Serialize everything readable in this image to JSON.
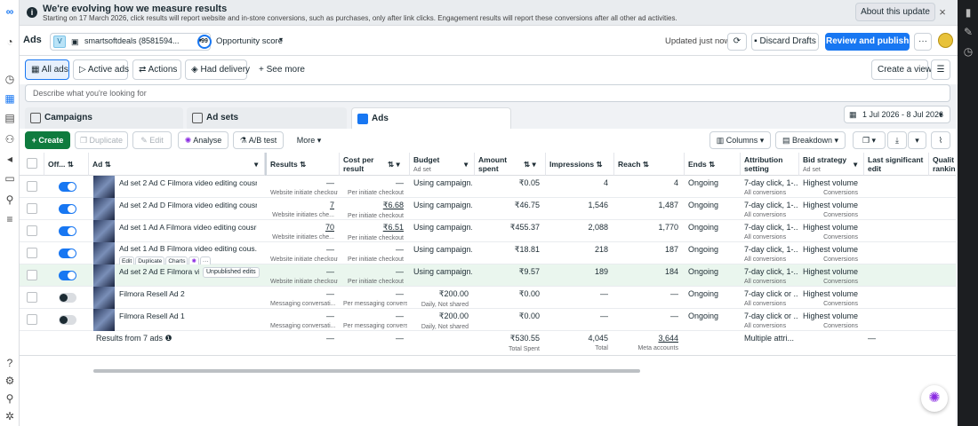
{
  "banner": {
    "title": "We're evolving how we measure results",
    "text": "Starting on 17 March 2026, click results will report website and in-store conversions, such as purchases, only after link clicks. Engagement results will report these conversions after all other ad activities.",
    "about_label": "About this update",
    "close_icon": "×"
  },
  "header": {
    "title": "Ads",
    "account_badge": "V",
    "account_name": "smartsoftdeals (8581594...",
    "opportunity_score_value": "99",
    "opportunity_score_label": "Opportunity score",
    "updated": "Updated just now",
    "discard_label": "Discard Drafts",
    "publish_label": "Review and publish (1)",
    "more_label": "···"
  },
  "filter_tabs": [
    {
      "label": "All ads"
    },
    {
      "label": "Active ads"
    },
    {
      "label": "Actions"
    },
    {
      "label": "Had delivery"
    },
    {
      "label": "See more"
    }
  ],
  "create_view_label": "Create a view",
  "search": {
    "placeholder": "Describe what you're looking for"
  },
  "level_tabs": [
    {
      "label": "Campaigns"
    },
    {
      "label": "Ad sets"
    },
    {
      "label": "Ads"
    }
  ],
  "date_range": "1 Jul 2026 - 8 Jul 2026",
  "toolbar": {
    "create": "Create",
    "duplicate": "Duplicate",
    "edit": "Edit",
    "analyse": "Analyse",
    "ab_test": "A/B test",
    "more": "More",
    "columns": "Columns",
    "breakdown": "Breakdown"
  },
  "columns": {
    "off_on": "Off...",
    "ad": "Ad",
    "results": "Results",
    "cost_per_result_1": "Cost per",
    "cost_per_result_2": "result",
    "budget": "Budget",
    "budget_sub": "Ad set",
    "amount_spent_1": "Amount",
    "amount_spent_2": "spent",
    "impressions": "Impressions",
    "reach": "Reach",
    "ends": "Ends",
    "attribution_1": "Attribution",
    "attribution_2": "setting",
    "bid_strategy": "Bid strategy",
    "bid_strategy_sub": "Ad set",
    "last_edit_1": "Last significant",
    "last_edit_2": "edit",
    "quality_1": "Qualit",
    "quality_2": "rankin"
  },
  "rows": [
    {
      "name": "Ad set 2 Ad C Filmora video editing cousre ...",
      "on": true,
      "results": "—",
      "results_sub": "Website initiate checkout",
      "cpr": "—",
      "cpr_sub": "Per initiate checkout",
      "budget": "Using campaign...",
      "spent": "₹0.05",
      "impressions": "4",
      "reach": "4",
      "ends": "Ongoing",
      "attribution": "7-day click, 1-...",
      "attribution_sub": "All conversions",
      "bid": "Highest volume",
      "bid_sub": "Conversions"
    },
    {
      "name": "Ad set 2 Ad D Filmora video editing cousre ...",
      "on": true,
      "results": "7",
      "results_sub": "Website initiates che...",
      "cpr": "₹6.68",
      "cpr_sub": "Per initiate checkout",
      "budget": "Using campaign...",
      "spent": "₹46.75",
      "impressions": "1,546",
      "reach": "1,487",
      "ends": "Ongoing",
      "attribution": "7-day click, 1-...",
      "attribution_sub": "All conversions",
      "bid": "Highest volume",
      "bid_sub": "Conversions"
    },
    {
      "name": "Ad set 1 Ad A Filmora video editing cousre ...",
      "on": true,
      "results": "70",
      "results_sub": "Website initiates che...",
      "cpr": "₹6.51",
      "cpr_sub": "Per initiate checkout",
      "budget": "Using campaign...",
      "spent": "₹455.37",
      "impressions": "2,088",
      "reach": "1,770",
      "ends": "Ongoing",
      "attribution": "7-day click, 1-...",
      "attribution_sub": "All conversions",
      "bid": "Highest volume",
      "bid_sub": "Conversions"
    },
    {
      "name": "Ad set 1 Ad B Filmora video editing cous...",
      "on": true,
      "results": "—",
      "results_sub": "Website initiate checkout",
      "cpr": "—",
      "cpr_sub": "Per initiate checkout",
      "budget": "Using campaign...",
      "spent": "₹18.81",
      "impressions": "218",
      "reach": "187",
      "ends": "Ongoing",
      "attribution": "7-day click, 1-...",
      "attribution_sub": "All conversions",
      "bid": "Highest volume",
      "bid_sub": "Conversions",
      "actions": [
        "Edit",
        "Duplicate",
        "Charts",
        "···"
      ]
    },
    {
      "name": "Ad set 2 Ad E Filmora vi...",
      "on": true,
      "badge": "Unpublished edits",
      "results": "—",
      "results_sub": "Website initiate checkout",
      "cpr": "—",
      "cpr_sub": "Per initiate checkout",
      "budget": "Using campaign...",
      "spent": "₹9.57",
      "impressions": "189",
      "reach": "184",
      "ends": "Ongoing",
      "attribution": "7-day click, 1-...",
      "attribution_sub": "All conversions",
      "bid": "Highest volume",
      "bid_sub": "Conversions"
    },
    {
      "name": "Filmora Resell Ad 2",
      "on": false,
      "results": "—",
      "results_sub": "Messaging conversati...",
      "cpr": "—",
      "cpr_sub": "Per messaging convers...",
      "budget": "₹200.00",
      "budget_sub": "Daily, Not shared",
      "spent": "₹0.00",
      "impressions": "—",
      "reach": "—",
      "ends": "Ongoing",
      "attribution": "7-day click or ...",
      "attribution_sub": "All conversions",
      "bid": "Highest volume",
      "bid_sub": "Conversions"
    },
    {
      "name": "Filmora Resell Ad 1",
      "on": false,
      "results": "—",
      "results_sub": "Messaging conversati...",
      "cpr": "—",
      "cpr_sub": "Per messaging convers...",
      "budget": "₹200.00",
      "budget_sub": "Daily, Not shared",
      "spent": "₹0.00",
      "impressions": "—",
      "reach": "—",
      "ends": "Ongoing",
      "attribution": "7-day click or ...",
      "attribution_sub": "All conversions",
      "bid": "Highest volume",
      "bid_sub": "Conversions"
    }
  ],
  "totals": {
    "label": "Results from 7 ads",
    "results": "—",
    "cpr": "—",
    "spent": "₹530.55",
    "spent_sub": "Total Spent",
    "impressions": "4,045",
    "impressions_sub": "Total",
    "reach": "3,644",
    "reach_sub": "Meta accounts",
    "attribution": "Multiple attri...",
    "last_edit": "—"
  }
}
